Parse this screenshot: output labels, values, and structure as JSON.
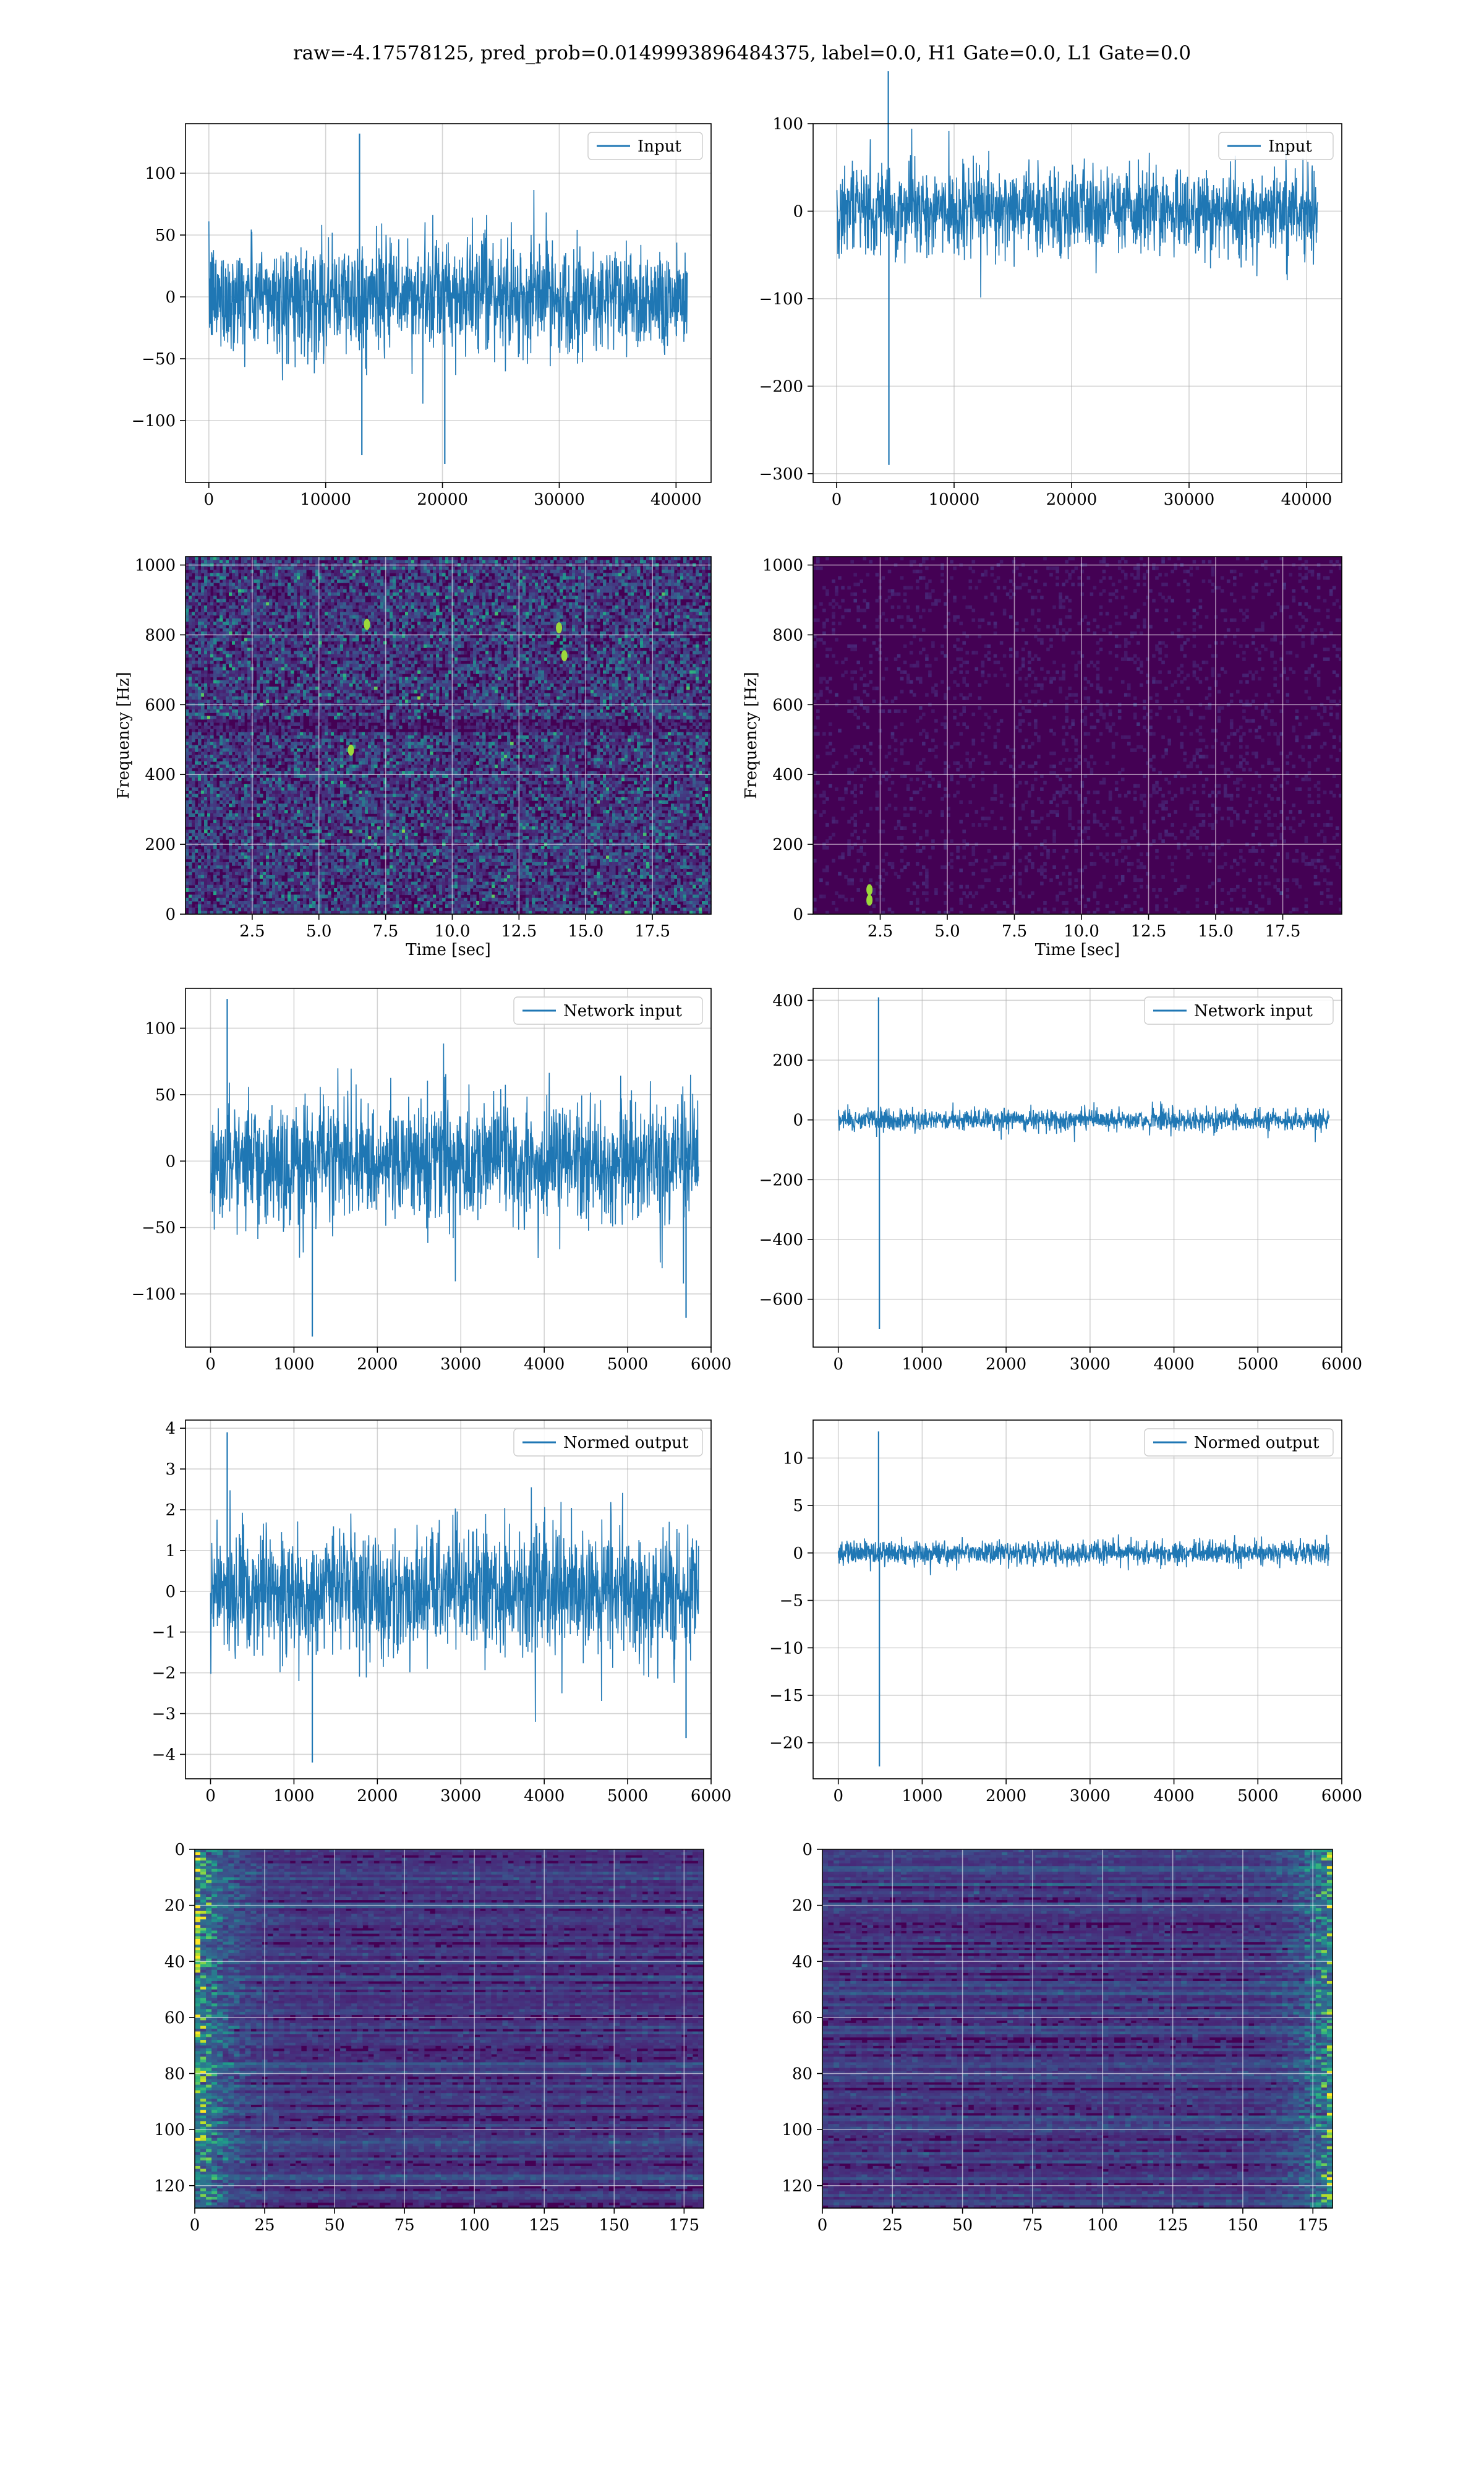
{
  "suptitle": "raw=-4.17578125, pred_prob=0.0149993896484375, label=0.0, H1 Gate=0.0, L1 Gate=0.0",
  "colors": {
    "line": "#1f77b4",
    "grid": "#b0b0b0",
    "viridis_dark": "#440154"
  },
  "chart_data": [
    {
      "id": "r1c1",
      "type": "line",
      "legend": "Input",
      "legend_loc": "upper right",
      "xlim": [
        -2000,
        43000
      ],
      "ylim": [
        -150,
        140
      ],
      "xticks": [
        0,
        10000,
        20000,
        30000,
        40000
      ],
      "yticks": [
        -100,
        -50,
        0,
        50,
        100
      ],
      "xticklabels": [
        "0",
        "10000",
        "20000",
        "30000",
        "40000"
      ],
      "yticklabels": [
        "−100",
        "−50",
        "0",
        "50",
        "100"
      ],
      "signal": {
        "n": 40960,
        "std": 22,
        "envelope": 1.0,
        "extremes": [
          [
            12900,
            132
          ],
          [
            20200,
            -135
          ],
          [
            13100,
            -128
          ]
        ]
      },
      "xlabel": "",
      "ylabel": ""
    },
    {
      "id": "r1c2",
      "type": "line",
      "legend": "Input",
      "legend_loc": "upper right",
      "xlim": [
        -2000,
        43000
      ],
      "ylim": [
        -310,
        100
      ],
      "xticks": [
        0,
        10000,
        20000,
        30000,
        40000
      ],
      "yticks": [
        -300,
        -200,
        -100,
        0,
        100
      ],
      "xticklabels": [
        "0",
        "10000",
        "20000",
        "30000",
        "40000"
      ],
      "yticklabels": [
        "−300",
        "−200",
        "−100",
        "0",
        "100"
      ],
      "signal": {
        "n": 40960,
        "std": 24,
        "envelope": 1.0,
        "extremes": [
          [
            4400,
            160
          ],
          [
            4450,
            -290
          ]
        ]
      },
      "xlabel": "",
      "ylabel": ""
    },
    {
      "id": "r2c1",
      "type": "heatmap",
      "xlabel": "Time [sec]",
      "ylabel": "Frequency [Hz]",
      "xlim": [
        0,
        19.7
      ],
      "ylim": [
        0,
        1024
      ],
      "xticks": [
        2.5,
        5.0,
        7.5,
        10.0,
        12.5,
        15.0,
        17.5
      ],
      "yticks": [
        0,
        200,
        400,
        600,
        800,
        1000
      ],
      "xticklabels": [
        "2.5",
        "5.0",
        "7.5",
        "10.0",
        "12.5",
        "15.0",
        "17.5"
      ],
      "yticklabels": [
        "0",
        "200",
        "400",
        "600",
        "800",
        "1000"
      ],
      "noise_level": 0.22,
      "hotspots": [
        [
          14.0,
          820
        ],
        [
          6.8,
          830
        ],
        [
          6.2,
          470
        ],
        [
          14.2,
          740
        ]
      ]
    },
    {
      "id": "r2c2",
      "type": "heatmap",
      "xlabel": "Time [sec]",
      "ylabel": "Frequency [Hz]",
      "xlim": [
        0,
        19.7
      ],
      "ylim": [
        0,
        1024
      ],
      "xticks": [
        2.5,
        5.0,
        7.5,
        10.0,
        12.5,
        15.0,
        17.5
      ],
      "yticks": [
        0,
        200,
        400,
        600,
        800,
        1000
      ],
      "xticklabels": [
        "2.5",
        "5.0",
        "7.5",
        "10.0",
        "12.5",
        "15.0",
        "17.5"
      ],
      "yticklabels": [
        "0",
        "200",
        "400",
        "600",
        "800",
        "1000"
      ],
      "noise_level": 0.04,
      "hotspots": [
        [
          2.1,
          40
        ],
        [
          2.1,
          70
        ]
      ]
    },
    {
      "id": "r3c1",
      "type": "line",
      "legend": "Network input",
      "legend_loc": "upper right",
      "xlim": [
        -300,
        6000
      ],
      "ylim": [
        -140,
        130
      ],
      "xticks": [
        0,
        1000,
        2000,
        3000,
        4000,
        5000,
        6000
      ],
      "yticks": [
        -100,
        -50,
        0,
        50,
        100
      ],
      "xticklabels": [
        "0",
        "1000",
        "2000",
        "3000",
        "4000",
        "5000",
        "6000"
      ],
      "yticklabels": [
        "−100",
        "−50",
        "0",
        "50",
        "100"
      ],
      "signal": {
        "n": 5850,
        "std": 22,
        "envelope": 1.0,
        "extremes": [
          [
            200,
            122
          ],
          [
            1220,
            -132
          ],
          [
            5700,
            -118
          ]
        ]
      },
      "xlabel": "",
      "ylabel": ""
    },
    {
      "id": "r3c2",
      "type": "line",
      "legend": "Network input",
      "legend_loc": "upper right",
      "xlim": [
        -300,
        6000
      ],
      "ylim": [
        -760,
        440
      ],
      "xticks": [
        0,
        1000,
        2000,
        3000,
        4000,
        5000,
        6000
      ],
      "yticks": [
        -600,
        -400,
        -200,
        0,
        200,
        400
      ],
      "xticklabels": [
        "0",
        "1000",
        "2000",
        "3000",
        "4000",
        "5000",
        "6000"
      ],
      "yticklabels": [
        "−600",
        "−400",
        "−200",
        "0",
        "200",
        "400"
      ],
      "signal": {
        "n": 5850,
        "std": 18,
        "envelope": 1.0,
        "extremes": [
          [
            480,
            410
          ],
          [
            490,
            -700
          ]
        ]
      },
      "xlabel": "",
      "ylabel": ""
    },
    {
      "id": "r4c1",
      "type": "line",
      "legend": "Normed output",
      "legend_loc": "upper right",
      "xlim": [
        -300,
        6000
      ],
      "ylim": [
        -4.6,
        4.2
      ],
      "xticks": [
        0,
        1000,
        2000,
        3000,
        4000,
        5000,
        6000
      ],
      "yticks": [
        -4,
        -3,
        -2,
        -1,
        0,
        1,
        2,
        3,
        4
      ],
      "xticklabels": [
        "0",
        "1000",
        "2000",
        "3000",
        "4000",
        "5000",
        "6000"
      ],
      "yticklabels": [
        "−4",
        "−3",
        "−2",
        "−1",
        "0",
        "1",
        "2",
        "3",
        "4"
      ],
      "signal": {
        "n": 5850,
        "std": 0.75,
        "envelope": 1.0,
        "extremes": [
          [
            200,
            3.9
          ],
          [
            1220,
            -4.2
          ],
          [
            5700,
            -3.6
          ]
        ]
      },
      "xlabel": "",
      "ylabel": ""
    },
    {
      "id": "r4c2",
      "type": "line",
      "legend": "Normed output",
      "legend_loc": "upper right",
      "xlim": [
        -300,
        6000
      ],
      "ylim": [
        -23.8,
        14
      ],
      "xticks": [
        0,
        1000,
        2000,
        3000,
        4000,
        5000,
        6000
      ],
      "yticks": [
        -20,
        -15,
        -10,
        -5,
        0,
        5,
        10
      ],
      "xticklabels": [
        "0",
        "1000",
        "2000",
        "3000",
        "4000",
        "5000",
        "6000"
      ],
      "yticklabels": [
        "−20",
        "−15",
        "−10",
        "−5",
        "0",
        "5",
        "10"
      ],
      "signal": {
        "n": 5850,
        "std": 0.6,
        "envelope": 1.0,
        "extremes": [
          [
            480,
            12.8
          ],
          [
            490,
            -22.5
          ]
        ]
      },
      "xlabel": "",
      "ylabel": ""
    },
    {
      "id": "r5c1",
      "type": "heatmap",
      "orientation": "top-origin",
      "xlim": [
        0,
        182
      ],
      "ylim": [
        128,
        0
      ],
      "xticks": [
        0,
        25,
        50,
        75,
        100,
        125,
        150,
        175
      ],
      "yticks": [
        0,
        20,
        40,
        60,
        80,
        100,
        120
      ],
      "xticklabels": [
        "0",
        "25",
        "50",
        "75",
        "100",
        "125",
        "150",
        "175"
      ],
      "yticklabels": [
        "0",
        "20",
        "40",
        "60",
        "80",
        "100",
        "120"
      ],
      "bright_side": "left",
      "xlabel": "",
      "ylabel": ""
    },
    {
      "id": "r5c2",
      "type": "heatmap",
      "orientation": "top-origin",
      "xlim": [
        0,
        182
      ],
      "ylim": [
        128,
        0
      ],
      "xticks": [
        0,
        25,
        50,
        75,
        100,
        125,
        150,
        175
      ],
      "yticks": [
        0,
        20,
        40,
        60,
        80,
        100,
        120
      ],
      "xticklabels": [
        "0",
        "25",
        "50",
        "75",
        "100",
        "125",
        "150",
        "175"
      ],
      "yticklabels": [
        "0",
        "20",
        "40",
        "60",
        "80",
        "100",
        "120"
      ],
      "bright_side": "right",
      "xlabel": "",
      "ylabel": ""
    }
  ]
}
